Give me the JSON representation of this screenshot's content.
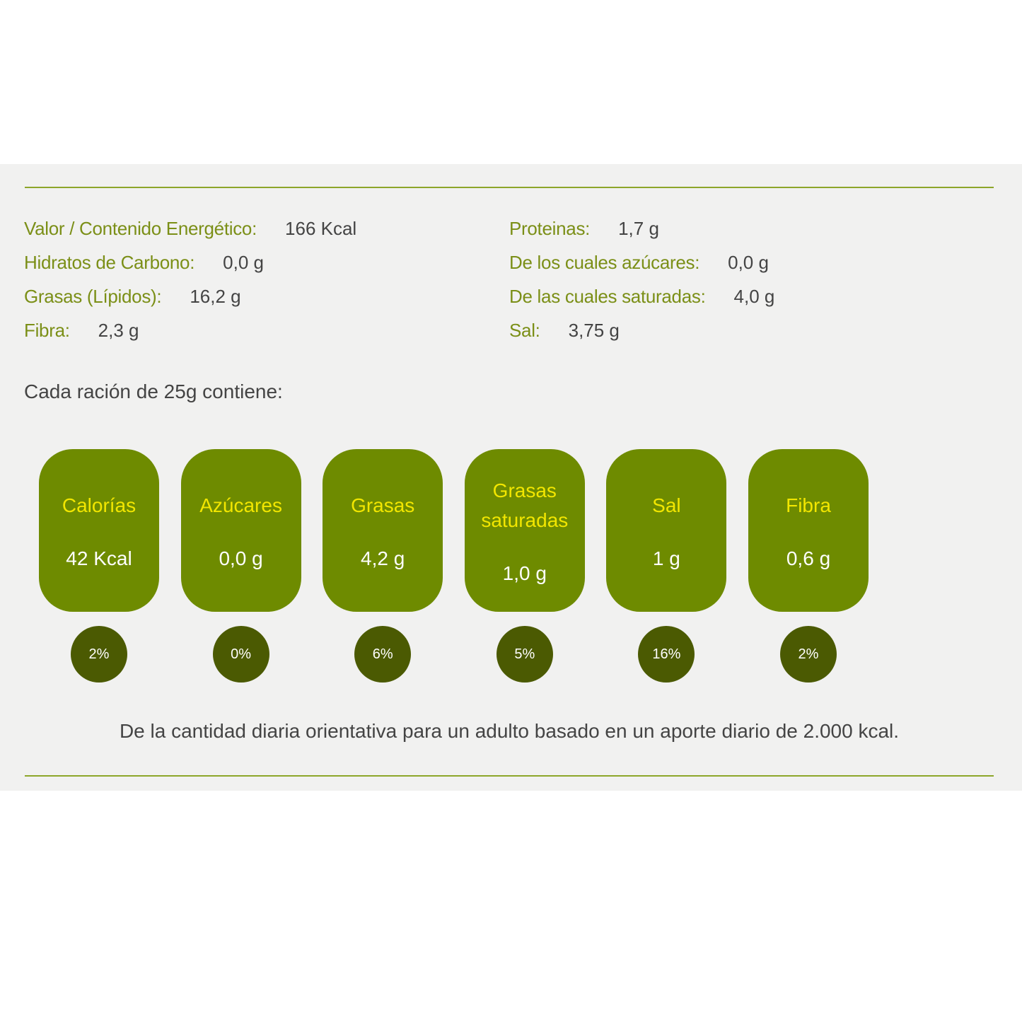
{
  "nutrients": {
    "left": [
      {
        "label": "Valor / Contenido Energético:",
        "value": "166 Kcal"
      },
      {
        "label": "Hidratos de Carbono:",
        "value": "0,0 g"
      },
      {
        "label": "Grasas (Lípidos):",
        "value": "16,2 g"
      },
      {
        "label": "Fibra:",
        "value": "2,3 g"
      }
    ],
    "right": [
      {
        "label": "Proteinas:",
        "value": "1,7 g"
      },
      {
        "label": "De los cuales azúcares:",
        "value": "0,0 g"
      },
      {
        "label": "De las cuales saturadas:",
        "value": "4,0 g"
      },
      {
        "label": "Sal:",
        "value": "3,75 g"
      }
    ]
  },
  "serving_note": "Cada ración de 25g contiene:",
  "badges": [
    {
      "name": "Calorías",
      "value": "42 Kcal",
      "percent": "2%"
    },
    {
      "name": "Azúcares",
      "value": "0,0 g",
      "percent": "0%"
    },
    {
      "name": "Grasas",
      "value": "4,2 g",
      "percent": "6%"
    },
    {
      "name": "Grasas saturadas",
      "value": "1,0 g",
      "percent": "5%"
    },
    {
      "name": "Sal",
      "value": "1 g",
      "percent": "16%"
    },
    {
      "name": "Fibra",
      "value": "0,6 g",
      "percent": "2%"
    }
  ],
  "footnote": "De la cantidad diaria orientativa para un adulto basado en un aporte diario de 2.000 kcal."
}
